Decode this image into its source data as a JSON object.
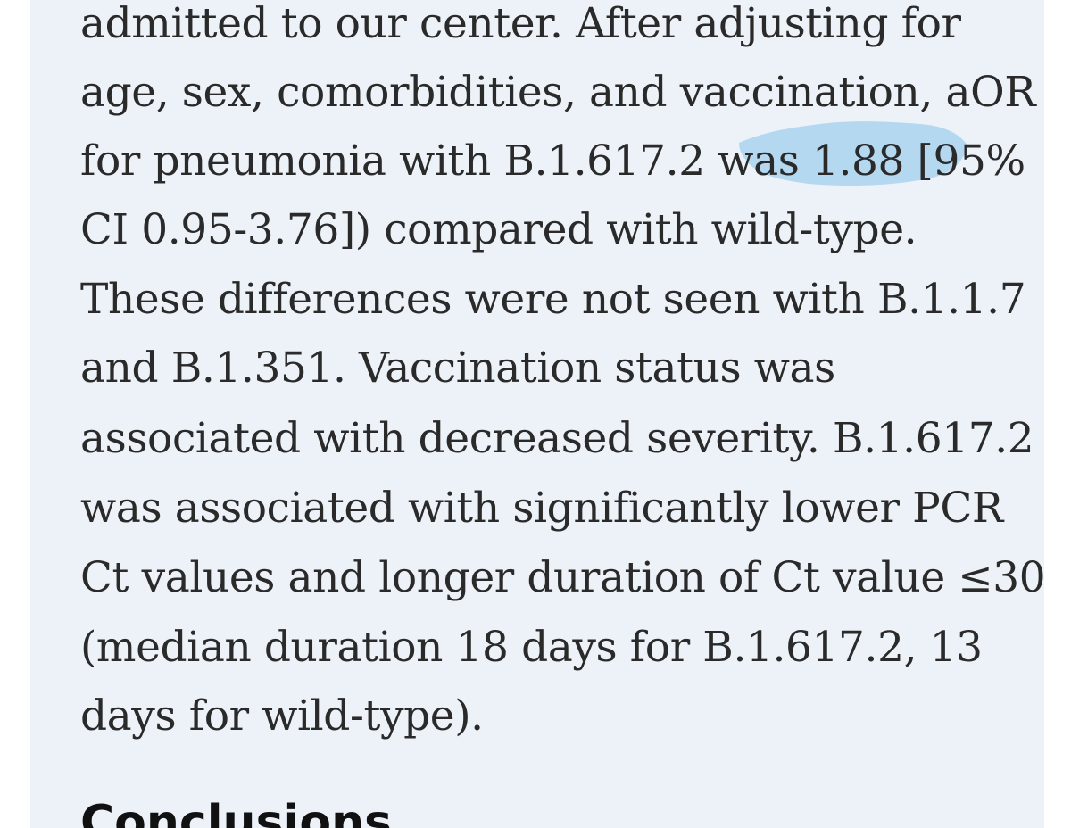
{
  "document": {
    "lines": [
      "admitted to our center. After adjusting for",
      "age, sex, comorbidities, and vaccination, aOR",
      "for pneumonia with B.1.617.2 was 1.88 [95%",
      "CI 0.95-3.76]) compared with wild-type.",
      "These differences were not seen with B.1.1.7",
      "and B.1.351. Vaccination status was",
      "associated with decreased severity. B.1.617.2",
      "was associated with significantly lower PCR",
      "Ct values and longer duration of Ct value ≤30",
      "(median duration 18 days for B.1.617.2, 13",
      "days for wild-type)."
    ],
    "next_heading": "Conclusions"
  },
  "colors": {
    "panel_background": "#edf2f8",
    "text": "#2a2a2a",
    "highlight": "#a9d4ef"
  }
}
